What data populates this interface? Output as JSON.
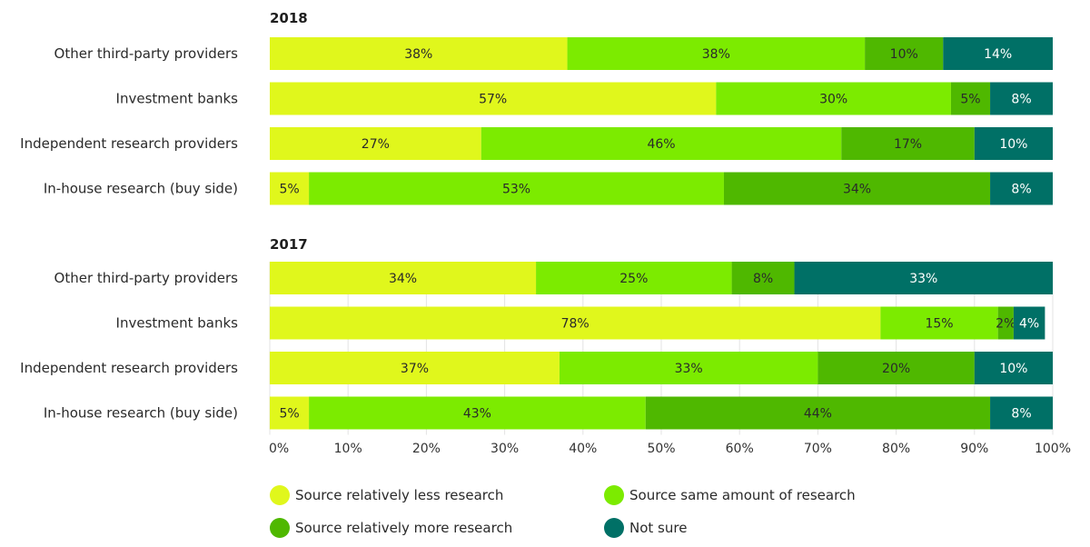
{
  "chart_data": {
    "type": "bar",
    "orientation": "horizontal",
    "stacked": true,
    "xlim": [
      0,
      100
    ],
    "x_ticks": [
      "0%",
      "10%",
      "20%",
      "30%",
      "40%",
      "50%",
      "60%",
      "70%",
      "80%",
      "90%",
      "100%"
    ],
    "x_tick_values": [
      0,
      10,
      20,
      30,
      40,
      50,
      60,
      70,
      80,
      90,
      100
    ],
    "grid": "vertical",
    "legend_position": "bottom",
    "series_meta": [
      {
        "name": "Source relatively less research",
        "color": "#e0f71c",
        "label_color": "#2a2a2a"
      },
      {
        "name": "Source same amount of research",
        "color": "#7ceb00",
        "label_color": "#2a2a2a"
      },
      {
        "name": "Source relatively more research",
        "color": "#4fb800",
        "label_color": "#2a2a2a"
      },
      {
        "name": "Not sure",
        "color": "#007066",
        "label_color": "#ffffff"
      }
    ],
    "panels": [
      {
        "title": "2018",
        "categories": [
          "Other third-party providers",
          "Investment banks",
          "Independent research providers",
          "In-house research (buy side)"
        ],
        "series": [
          {
            "name": "Source relatively less research",
            "values": [
              38,
              57,
              27,
              5
            ]
          },
          {
            "name": "Source same amount of research",
            "values": [
              38,
              30,
              46,
              53
            ]
          },
          {
            "name": "Source relatively more research",
            "values": [
              10,
              5,
              17,
              34
            ]
          },
          {
            "name": "Not sure",
            "values": [
              14,
              8,
              10,
              8
            ]
          }
        ]
      },
      {
        "title": "2017",
        "categories": [
          "Other third-party providers",
          "Investment banks",
          "Independent research providers",
          "In-house research (buy side)"
        ],
        "series": [
          {
            "name": "Source relatively less research",
            "values": [
              34,
              78,
              37,
              5
            ]
          },
          {
            "name": "Source same amount of research",
            "values": [
              25,
              15,
              33,
              43
            ]
          },
          {
            "name": "Source relatively more research",
            "values": [
              8,
              2,
              20,
              44
            ]
          },
          {
            "name": "Not sure",
            "values": [
              33,
              4,
              10,
              8
            ]
          }
        ]
      }
    ]
  },
  "legend": {
    "items": [
      {
        "label": "Source relatively less research",
        "color": "#e0f71c"
      },
      {
        "label": "Source same amount of research",
        "color": "#7ceb00"
      },
      {
        "label": "Source relatively more research",
        "color": "#4fb800"
      },
      {
        "label": "Not sure",
        "color": "#007066"
      }
    ]
  }
}
